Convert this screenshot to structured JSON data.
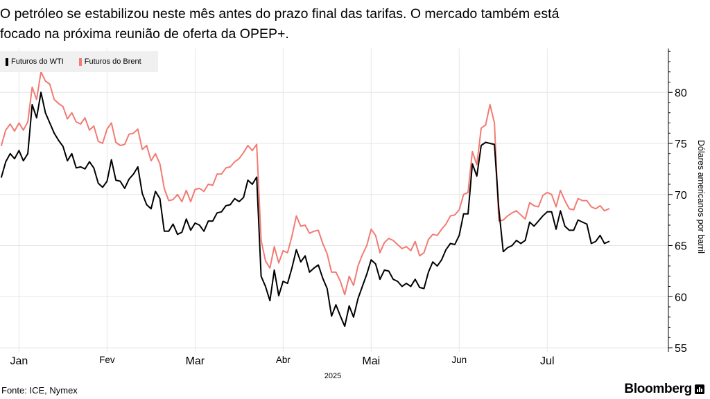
{
  "header": {
    "title": "O petróleo se estabilizou neste mês antes do prazo final das tarifas. O mercado também está focado na próxima reunião de oferta da OPEP+."
  },
  "footer": {
    "source": "Fonte: ICE, Nymex",
    "brand": "Bloomberg"
  },
  "chart_data": {
    "type": "line",
    "ylabel": "Dólares americanos por barril",
    "ylim": [
      55,
      85
    ],
    "yticks": [
      55,
      60,
      65,
      70,
      75,
      80
    ],
    "xlim": [
      0,
      149
    ],
    "x_ticks": [
      {
        "label": "Jan",
        "x": 4
      },
      {
        "label": "Fev",
        "x": 24
      },
      {
        "label": "Mar",
        "x": 44
      },
      {
        "label": "Abr",
        "x": 64
      },
      {
        "label": "Mai",
        "x": 84
      },
      {
        "label": "Jun",
        "x": 104
      },
      {
        "label": "Jul",
        "x": 124
      }
    ],
    "year_label": "2025",
    "grid": true,
    "legend_position": "top-left",
    "series": [
      {
        "name": "Futuros do WTI",
        "color": "#000000",
        "values": [
          71.7,
          73.2,
          74.0,
          73.5,
          74.3,
          73.3,
          74.0,
          78.8,
          77.5,
          80.0,
          78.0,
          77.0,
          76.0,
          75.3,
          74.7,
          73.3,
          74.0,
          72.6,
          72.7,
          72.5,
          73.2,
          72.6,
          71.1,
          70.7,
          71.3,
          73.4,
          71.4,
          71.3,
          70.6,
          71.5,
          72.0,
          72.7,
          70.1,
          69.0,
          68.6,
          70.3,
          69.6,
          66.4,
          66.4,
          67.1,
          66.1,
          66.3,
          67.6,
          66.5,
          67.2,
          67.0,
          66.4,
          67.4,
          67.4,
          68.2,
          68.3,
          68.9,
          69.0,
          69.6,
          69.3,
          69.7,
          71.4,
          71.0,
          71.7,
          62.0,
          61.0,
          59.6,
          62.6,
          60.1,
          61.5,
          61.3,
          62.8,
          64.6,
          63.4,
          64.0,
          62.4,
          62.8,
          63.1,
          61.8,
          60.8,
          58.1,
          59.2,
          58.1,
          57.1,
          59.1,
          58.0,
          59.8,
          61.0,
          62.2,
          63.6,
          63.2,
          61.7,
          62.6,
          62.5,
          61.7,
          61.5,
          61.0,
          61.3,
          61.0,
          61.7,
          60.9,
          60.8,
          62.4,
          63.4,
          63.0,
          63.6,
          64.6,
          65.2,
          65.1,
          66.0,
          68.1,
          68.1,
          73.0,
          71.8,
          74.8,
          75.1,
          75.0,
          74.9,
          68.6,
          64.4,
          64.8,
          65.0,
          65.5,
          65.2,
          65.5,
          67.3,
          66.9,
          67.4,
          67.9,
          68.3,
          68.3,
          66.6,
          68.4,
          66.9,
          66.5,
          66.5,
          67.5,
          67.3,
          67.1,
          65.2,
          65.4,
          66.0,
          65.2,
          65.4
        ]
      },
      {
        "name": "Futuros do Brent",
        "color": "#f27b73",
        "values": [
          74.8,
          76.3,
          76.9,
          76.2,
          77.0,
          76.3,
          77.1,
          80.5,
          79.3,
          82.0,
          81.1,
          80.8,
          79.3,
          78.9,
          78.6,
          77.4,
          78.0,
          77.1,
          76.9,
          77.5,
          76.3,
          76.7,
          75.2,
          75.0,
          76.4,
          77.0,
          75.1,
          74.8,
          74.9,
          75.9,
          76.0,
          76.4,
          74.4,
          74.8,
          73.3,
          74.0,
          73.0,
          70.6,
          69.4,
          69.5,
          70.0,
          69.3,
          70.4,
          69.3,
          70.5,
          70.6,
          70.3,
          71.0,
          70.9,
          72.0,
          72.0,
          72.6,
          72.7,
          73.2,
          73.5,
          74.1,
          74.8,
          74.3,
          74.9,
          65.5,
          63.5,
          62.8,
          64.9,
          63.3,
          64.5,
          64.3,
          65.9,
          67.9,
          66.9,
          67.0,
          66.2,
          66.4,
          66.5,
          65.2,
          64.2,
          62.4,
          62.4,
          61.5,
          60.2,
          62.0,
          61.1,
          63.0,
          64.1,
          65.0,
          66.6,
          66.0,
          64.3,
          65.3,
          65.7,
          65.5,
          65.1,
          64.7,
          64.9,
          64.5,
          65.4,
          64.0,
          64.3,
          65.6,
          66.1,
          66.0,
          66.6,
          67.1,
          67.9,
          68.0,
          68.5,
          70.0,
          70.2,
          74.2,
          72.9,
          76.5,
          76.8,
          78.8,
          77.0,
          67.4,
          67.5,
          67.9,
          68.2,
          68.4,
          68.0,
          67.6,
          69.2,
          68.9,
          68.8,
          69.9,
          70.2,
          70.0,
          68.8,
          70.4,
          69.4,
          68.6,
          68.5,
          69.6,
          69.4,
          69.4,
          68.8,
          68.6,
          68.9,
          68.4,
          68.6
        ]
      }
    ]
  }
}
